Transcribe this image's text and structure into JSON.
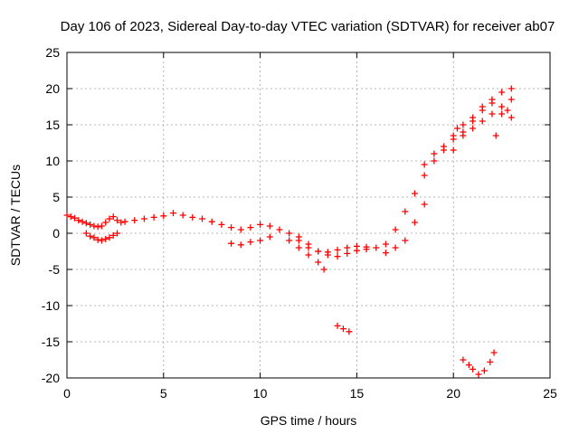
{
  "chart_data": {
    "type": "scatter",
    "title": "Day 106 of 2023, Sidereal Day-to-day VTEC variation (SDTVAR) for receiver ab07",
    "xlabel": "GPS time / hours",
    "ylabel": "SDTVAR / TECUs",
    "xlim": [
      0,
      25
    ],
    "ylim": [
      -20,
      25
    ],
    "xticks": [
      "0",
      "5",
      "10",
      "15",
      "20",
      "25"
    ],
    "yticks": [
      "-20",
      "-15",
      "-10",
      "-5",
      "0",
      "5",
      "10",
      "15",
      "20",
      "25"
    ],
    "grid": true,
    "marker": "+",
    "series": [
      {
        "name": "SDTVAR",
        "color": "#ff0000",
        "x": [
          0.0,
          0.2,
          0.4,
          0.6,
          0.8,
          1.0,
          1.2,
          1.4,
          1.6,
          1.8,
          2.0,
          2.2,
          2.4,
          2.6,
          2.8,
          3.0,
          3.5,
          4.0,
          4.5,
          5.0,
          5.5,
          6.0,
          6.5,
          7.0,
          7.5,
          8.0,
          8.5,
          9.0,
          9.5,
          10.0,
          10.5,
          11.0,
          11.5,
          12.0,
          12.5,
          13.0,
          13.5,
          14.0,
          14.5,
          15.0,
          15.5,
          16.0,
          16.5,
          17.0,
          17.5,
          18.0,
          18.5,
          19.0,
          19.5,
          20.0,
          20.2,
          20.5,
          21.0,
          21.5,
          22.0,
          22.5,
          23.0,
          1.0,
          1.2,
          1.4,
          1.6,
          1.8,
          2.0,
          2.2,
          2.4,
          2.6,
          8.5,
          9.0,
          9.5,
          10.0,
          10.5,
          11.5,
          12.0,
          12.5,
          13.0,
          13.3,
          12.0,
          12.5,
          13.0,
          13.5,
          14.0,
          14.5,
          15.0,
          15.5,
          16.5,
          17.0,
          17.5,
          18.0,
          18.5,
          18.5,
          19.0,
          19.5,
          20.0,
          20.5,
          21.0,
          21.5,
          22.0,
          22.5,
          23.0,
          20.0,
          20.5,
          21.0,
          21.5,
          22.0,
          22.5,
          22.8,
          23.0,
          14.0,
          14.3,
          14.6,
          20.5,
          20.8,
          21.0,
          21.3,
          21.6,
          21.9,
          22.1,
          22.2
        ],
        "y": [
          2.5,
          2.3,
          2.1,
          1.8,
          1.6,
          1.4,
          1.2,
          1.0,
          0.9,
          1.0,
          1.5,
          2.0,
          2.3,
          1.8,
          1.5,
          1.6,
          1.8,
          2.0,
          2.2,
          2.4,
          2.8,
          2.5,
          2.2,
          2.0,
          1.6,
          1.2,
          0.8,
          0.5,
          0.8,
          1.2,
          1.0,
          0.5,
          0.0,
          -1.0,
          -2.0,
          -2.5,
          -2.6,
          -2.3,
          -2.0,
          -1.8,
          -1.9,
          -2.0,
          -1.5,
          0.5,
          3.0,
          5.5,
          8.0,
          10.0,
          11.5,
          13.5,
          14.5,
          15.0,
          16.0,
          17.5,
          18.5,
          19.5,
          20.0,
          0.0,
          -0.4,
          -0.6,
          -0.9,
          -1.0,
          -0.8,
          -0.6,
          -0.3,
          0.0,
          -1.4,
          -1.6,
          -1.2,
          -1.0,
          -0.5,
          -1.0,
          -2.0,
          -3.0,
          -4.0,
          -5.0,
          -0.5,
          -1.5,
          -2.5,
          -3.0,
          -3.2,
          -2.8,
          -2.4,
          -2.2,
          -2.7,
          -2.0,
          -1.0,
          1.5,
          4.0,
          9.5,
          11.0,
          12.0,
          13.0,
          14.0,
          14.5,
          15.5,
          16.5,
          17.5,
          18.5,
          11.5,
          13.5,
          15.5,
          17.0,
          18.0,
          16.5,
          17.0,
          16.0,
          -12.8,
          -13.2,
          -13.6,
          -17.5,
          -18.2,
          -18.8,
          -19.5,
          -19.0,
          -17.8,
          -16.5,
          13.5
        ]
      }
    ]
  }
}
